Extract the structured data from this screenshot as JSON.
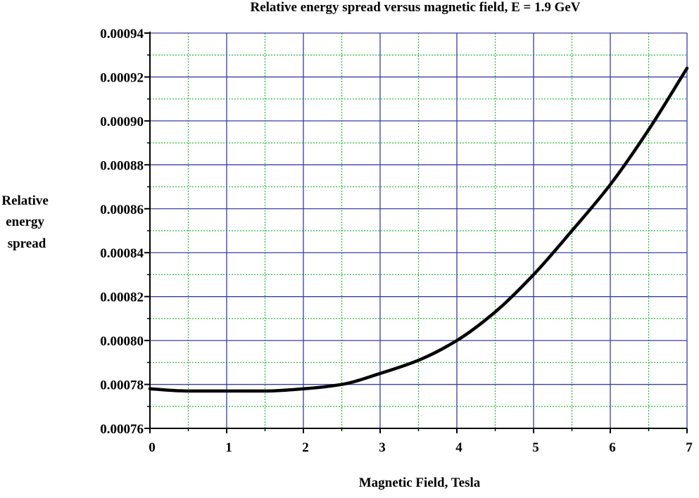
{
  "chart_data": {
    "type": "line",
    "title": "Relative energy spread versus magnetic field, E = 1.9 GeV",
    "xlabel": "Magnetic Field, Tesla",
    "ylabel_lines": [
      "Relative",
      "energy",
      "spread"
    ],
    "xlim": [
      0,
      7
    ],
    "ylim": [
      0.00076,
      0.00094
    ],
    "x_major_ticks": [
      0,
      1,
      2,
      3,
      4,
      5,
      6,
      7
    ],
    "x_tick_labels": [
      "0",
      "1",
      "2",
      "3",
      "4",
      "5",
      "6",
      "7"
    ],
    "x_minor_ticks": [
      0.5,
      1.5,
      2.5,
      3.5,
      4.5,
      5.5,
      6.5
    ],
    "y_major_ticks": [
      0.00076,
      0.00078,
      0.0008,
      0.00082,
      0.00084,
      0.00086,
      0.00088,
      0.0009,
      0.00092,
      0.00094
    ],
    "y_tick_labels": [
      "0.00076",
      "0.00078",
      "0.00080",
      "0.00082",
      "0.00084",
      "0.00086",
      "0.00088",
      "0.00090",
      "0.00092",
      "0.00094"
    ],
    "y_minor_ticks": [
      0.00077,
      0.00079,
      0.00081,
      0.00083,
      0.00085,
      0.00087,
      0.00089,
      0.00091,
      0.00093
    ],
    "grid": true,
    "colors": {
      "major_grid": "#3c3ca0",
      "minor_grid": "#22bb33",
      "curve": "#000000",
      "axis": "#000000"
    },
    "series": [
      {
        "x": [
          0,
          0.5,
          1,
          1.5,
          2,
          2.5,
          3,
          3.5,
          4,
          4.5,
          5,
          5.5,
          6,
          6.5,
          7
        ],
        "y": [
          0.000778,
          0.000777,
          0.000777,
          0.000777,
          0.000778,
          0.00078,
          0.000785,
          0.000791,
          0.0008,
          0.000813,
          0.00083,
          0.00085,
          0.000871,
          0.000896,
          0.000924
        ]
      }
    ]
  }
}
